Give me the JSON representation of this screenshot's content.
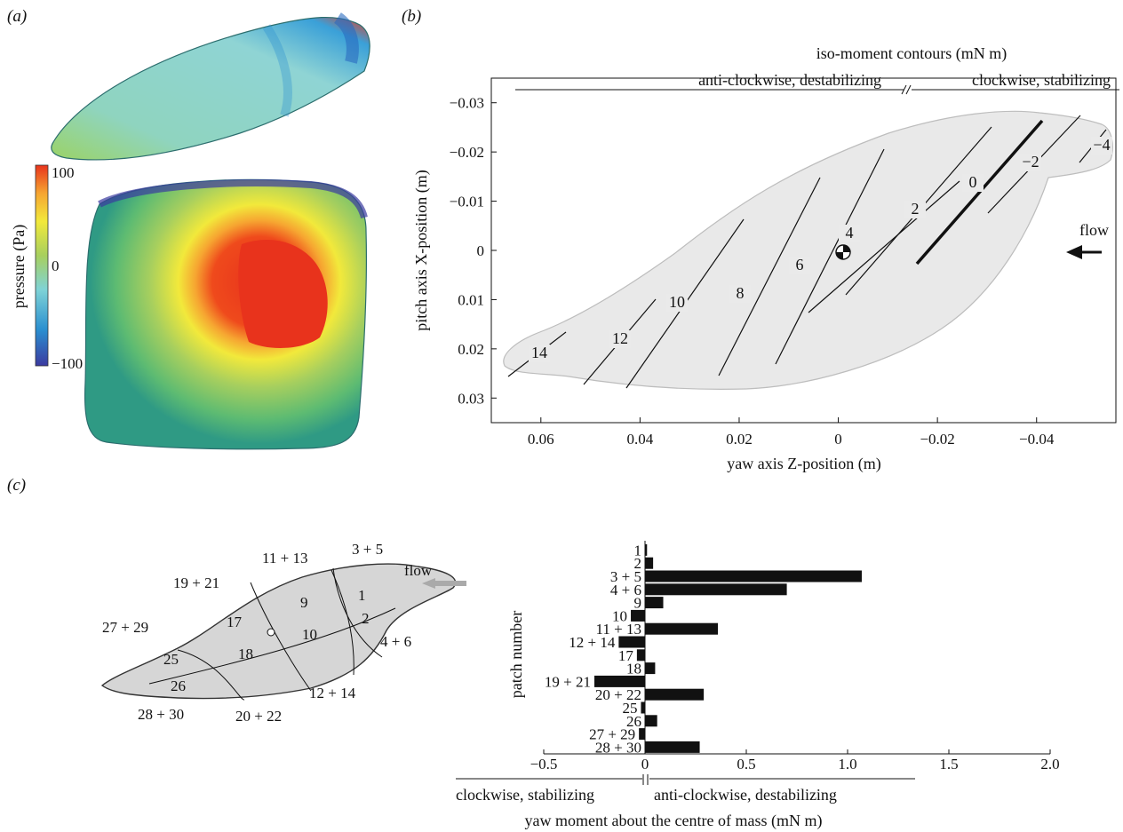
{
  "panels": {
    "a": "(a)",
    "b": "(b)",
    "c": "(c)"
  },
  "panel_a": {
    "colorbar_title": "pressure (Pa)",
    "colorbar_ticks": [
      "100",
      "0",
      "−100"
    ],
    "colors": [
      "#3b3aa0",
      "#2a8fd0",
      "#7fd3d6",
      "#a7cf5e",
      "#f2e93b",
      "#f6a531",
      "#e8331c"
    ]
  },
  "chart_data": [
    {
      "type": "line",
      "panel": "b",
      "title": "iso-moment contours (mN m)",
      "legend_left": "anti-clockwise, destabilizing",
      "legend_right": "clockwise, stabilizing",
      "xlabel": "yaw axis Z-position (m)",
      "ylabel": "pitch axis X-position (m)",
      "xlim": [
        0.07,
        -0.056
      ],
      "ylim": [
        -0.035,
        0.035
      ],
      "x_ticks": [
        "0.06",
        "0.04",
        "0.02",
        "0",
        "−0.02",
        "−0.04"
      ],
      "x_tick_values": [
        0.06,
        0.04,
        0.02,
        0,
        -0.02,
        -0.04
      ],
      "y_ticks": [
        "−0.03",
        "−0.02",
        "−0.01",
        "0",
        "0.01",
        "0.02",
        "0.03"
      ],
      "y_tick_values": [
        -0.03,
        -0.02,
        -0.01,
        0,
        0.01,
        0.02,
        0.03
      ],
      "contours": [
        {
          "label": "14",
          "bold": false
        },
        {
          "label": "12",
          "bold": false
        },
        {
          "label": "10",
          "bold": false
        },
        {
          "label": "8",
          "bold": false
        },
        {
          "label": "6",
          "bold": false
        },
        {
          "label": "4",
          "bold": false
        },
        {
          "label": "2",
          "bold": false
        },
        {
          "label": "0",
          "bold": true
        },
        {
          "label": "−2",
          "bold": false
        },
        {
          "label": "−4",
          "bold": false
        }
      ],
      "annotation": "flow"
    },
    {
      "type": "bar",
      "panel": "c",
      "orientation": "horizontal",
      "xlabel": "yaw moment about the centre of mass (mN m)",
      "ylabel": "patch number",
      "xlim": [
        -0.5,
        2.0
      ],
      "x_ticks": [
        "−0.5",
        "0",
        "0.5",
        "1.0",
        "1.5",
        "2.0"
      ],
      "x_tick_values": [
        -0.5,
        0,
        0.5,
        1.0,
        1.5,
        2.0
      ],
      "legend_left": "clockwise, stabilizing",
      "legend_right": "anti-clockwise, destabilizing",
      "categories": [
        "1",
        "2",
        "3 + 5",
        "4 + 6",
        "9",
        "10",
        "11 + 13",
        "12 + 14",
        "17",
        "18",
        "19 + 21",
        "20 + 22",
        "25",
        "26",
        "27 + 29",
        "28 + 30"
      ],
      "values": [
        0.01,
        0.04,
        1.07,
        0.7,
        0.09,
        -0.07,
        0.36,
        -0.13,
        -0.04,
        0.05,
        -0.25,
        0.29,
        -0.02,
        0.06,
        -0.03,
        0.27
      ]
    }
  ],
  "panel_c_diagram": {
    "patch_labels": [
      "3 + 5",
      "11 + 13",
      "19 + 21",
      "27 + 29",
      "1",
      "2",
      "9",
      "10",
      "17",
      "18",
      "25",
      "26",
      "4 + 6",
      "12 + 14",
      "20 + 22",
      "28 + 30"
    ],
    "flow": "flow"
  }
}
